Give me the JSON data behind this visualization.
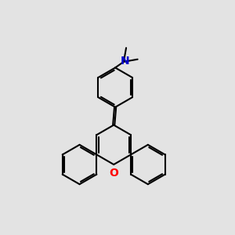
{
  "background_color": "#e3e3e3",
  "bond_color": "#000000",
  "oxygen_color": "#ff0000",
  "nitrogen_color": "#0000cc",
  "bond_width": 1.5,
  "dpi": 100,
  "fig_width": 3.0,
  "fig_height": 3.0
}
